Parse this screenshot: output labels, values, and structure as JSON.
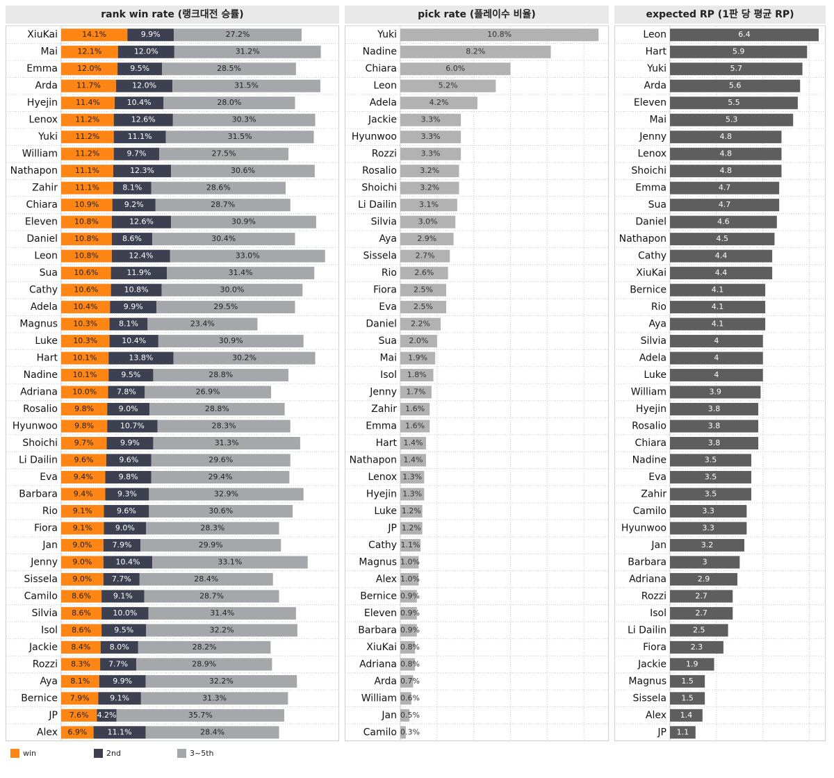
{
  "chart_data": [
    {
      "type": "stacked_bar",
      "title": "rank win rate (랭크대전 승률)",
      "categories": [
        "XiuKai",
        "Mai",
        "Emma",
        "Arda",
        "Hyejin",
        "Lenox",
        "Yuki",
        "William",
        "Nathapon",
        "Zahir",
        "Chiara",
        "Eleven",
        "Daniel",
        "Leon",
        "Sua",
        "Cathy",
        "Adela",
        "Magnus",
        "Luke",
        "Hart",
        "Nadine",
        "Adriana",
        "Rosalio",
        "Hyunwoo",
        "Shoichi",
        "Li Dailin",
        "Eva",
        "Barbara",
        "Rio",
        "Fiora",
        "Jan",
        "Jenny",
        "Sissela",
        "Camilo",
        "Silvia",
        "Isol",
        "Jackie",
        "Rozzi",
        "Aya",
        "Bernice",
        "JP",
        "Alex"
      ],
      "series": [
        {
          "name": "win",
          "color": "#ff8514",
          "values": [
            14.1,
            12.1,
            12.0,
            11.7,
            11.4,
            11.2,
            11.2,
            11.2,
            11.1,
            11.1,
            10.9,
            10.8,
            10.8,
            10.8,
            10.6,
            10.6,
            10.4,
            10.3,
            10.3,
            10.1,
            10.1,
            10.0,
            9.8,
            9.8,
            9.7,
            9.6,
            9.4,
            9.4,
            9.1,
            9.1,
            9.0,
            9.0,
            9.0,
            8.6,
            8.6,
            8.6,
            8.4,
            8.3,
            8.1,
            7.9,
            7.6,
            6.9
          ],
          "value_labels": [
            "14.1%",
            "12.1%",
            "12.0%",
            "11.7%",
            "11.4%",
            "11.2%",
            "11.2%",
            "11.2%",
            "11.1%",
            "11.1%",
            "10.9%",
            "10.8%",
            "10.8%",
            "10.8%",
            "10.6%",
            "10.6%",
            "10.4%",
            "10.3%",
            "10.3%",
            "10.1%",
            "10.1%",
            "10.0%",
            "9.8%",
            "9.8%",
            "9.7%",
            "9.6%",
            "9.4%",
            "9.4%",
            "9.1%",
            "9.1%",
            "9.0%",
            "9.0%",
            "9.0%",
            "8.6%",
            "8.6%",
            "8.6%",
            "8.4%",
            "8.3%",
            "8.1%",
            "7.9%",
            "7.6%",
            "6.9%"
          ]
        },
        {
          "name": "2nd",
          "color": "#3c4050",
          "values": [
            9.9,
            12.0,
            9.5,
            12.0,
            10.4,
            12.6,
            11.1,
            9.7,
            12.3,
            8.1,
            9.2,
            12.6,
            8.6,
            12.4,
            11.9,
            10.8,
            9.9,
            8.1,
            10.4,
            13.8,
            9.5,
            7.8,
            9.0,
            10.7,
            9.9,
            9.6,
            9.8,
            9.3,
            9.6,
            9.0,
            7.9,
            10.4,
            7.7,
            9.1,
            10.0,
            9.5,
            8.0,
            7.7,
            9.9,
            9.1,
            4.2,
            11.1
          ],
          "value_labels": [
            "9.9%",
            "12.0%",
            "9.5%",
            "12.0%",
            "10.4%",
            "12.6%",
            "11.1%",
            "9.7%",
            "12.3%",
            "8.1%",
            "9.2%",
            "12.6%",
            "8.6%",
            "12.4%",
            "11.9%",
            "10.8%",
            "9.9%",
            "8.1%",
            "10.4%",
            "13.8%",
            "9.5%",
            "7.8%",
            "9.0%",
            "10.7%",
            "9.9%",
            "9.6%",
            "9.8%",
            "9.3%",
            "9.6%",
            "9.0%",
            "7.9%",
            "10.4%",
            "7.7%",
            "9.1%",
            "10.0%",
            "9.5%",
            "8.0%",
            "7.7%",
            "9.9%",
            "9.1%",
            "4.2%",
            "11.1%"
          ]
        },
        {
          "name": "3~5th",
          "color": "#a5a7aa",
          "values": [
            27.2,
            31.2,
            28.5,
            31.5,
            28.0,
            30.3,
            31.5,
            27.5,
            30.6,
            28.6,
            28.7,
            30.9,
            30.4,
            33.0,
            31.4,
            30.0,
            29.5,
            23.4,
            30.9,
            30.2,
            28.8,
            26.9,
            28.8,
            28.3,
            31.3,
            29.6,
            29.4,
            32.9,
            30.6,
            28.3,
            29.9,
            33.1,
            28.4,
            28.7,
            31.4,
            32.2,
            28.2,
            28.9,
            32.2,
            31.3,
            35.7,
            28.4
          ],
          "value_labels": [
            "27.2%",
            "31.2%",
            "28.5%",
            "31.5%",
            "28.0%",
            "30.3%",
            "31.5%",
            "27.5%",
            "30.6%",
            "28.6%",
            "28.7%",
            "30.9%",
            "30.4%",
            "33.0%",
            "31.4%",
            "30.0%",
            "29.5%",
            "23.4%",
            "30.9%",
            "30.2%",
            "28.8%",
            "26.9%",
            "28.8%",
            "28.3%",
            "31.3%",
            "29.6%",
            "29.4%",
            "32.9%",
            "30.6%",
            "28.3%",
            "29.9%",
            "33.1%",
            "28.4%",
            "28.7%",
            "31.4%",
            "32.2%",
            "28.2%",
            "28.9%",
            "32.2%",
            "31.3%",
            "35.7%",
            "28.4%"
          ]
        }
      ],
      "xlim": [
        0,
        59.2
      ],
      "legend": "bottom-left"
    },
    {
      "type": "bar",
      "title": "pick rate (플레이수 비율)",
      "categories": [
        "Yuki",
        "Nadine",
        "Chiara",
        "Leon",
        "Adela",
        "Jackie",
        "Hyunwoo",
        "Rozzi",
        "Rosalio",
        "Shoichi",
        "Li Dailin",
        "Silvia",
        "Aya",
        "Sissela",
        "Rio",
        "Fiora",
        "Eva",
        "Daniel",
        "Sua",
        "Mai",
        "Isol",
        "Jenny",
        "Zahir",
        "Emma",
        "Hart",
        "Nathapon",
        "Lenox",
        "Hyejin",
        "Luke",
        "JP",
        "Cathy",
        "Magnus",
        "Alex",
        "Bernice",
        "Eleven",
        "Barbara",
        "XiuKai",
        "Adriana",
        "Arda",
        "William",
        "Jan",
        "Camilo"
      ],
      "values": [
        10.8,
        8.2,
        6.0,
        5.2,
        4.2,
        3.3,
        3.3,
        3.3,
        3.2,
        3.2,
        3.1,
        3.0,
        2.9,
        2.7,
        2.6,
        2.5,
        2.5,
        2.2,
        2.0,
        1.9,
        1.8,
        1.7,
        1.6,
        1.6,
        1.4,
        1.4,
        1.3,
        1.3,
        1.2,
        1.2,
        1.1,
        1.0,
        1.0,
        0.9,
        0.9,
        0.9,
        0.8,
        0.8,
        0.7,
        0.6,
        0.5,
        0.3
      ],
      "value_labels": [
        "10.8%",
        "8.2%",
        "6.0%",
        "5.2%",
        "4.2%",
        "3.3%",
        "3.3%",
        "3.3%",
        "3.2%",
        "3.2%",
        "3.1%",
        "3.0%",
        "2.9%",
        "2.7%",
        "2.6%",
        "2.5%",
        "2.5%",
        "2.2%",
        "2.0%",
        "1.9%",
        "1.8%",
        "1.7%",
        "1.6%",
        "1.6%",
        "1.4%",
        "1.4%",
        "1.3%",
        "1.3%",
        "1.2%",
        "1.2%",
        "1.1%",
        "1.0%",
        "1.0%",
        "0.9%",
        "0.9%",
        "0.9%",
        "0.8%",
        "0.8%",
        "0.7%",
        "0.6%",
        "0.5%",
        "0.3%"
      ],
      "color": "#b2b2b2",
      "xlim": [
        0,
        11.36
      ],
      "xticks": [
        0,
        2,
        4,
        6,
        8,
        10
      ],
      "grid": true
    },
    {
      "type": "bar",
      "title": "expected RP (1판 당 평균 RP)",
      "categories": [
        "Leon",
        "Hart",
        "Yuki",
        "Arda",
        "Eleven",
        "Mai",
        "Jenny",
        "Lenox",
        "Shoichi",
        "Emma",
        "Sua",
        "Daniel",
        "Nathapon",
        "Cathy",
        "XiuKai",
        "Bernice",
        "Rio",
        "Aya",
        "Silvia",
        "Adela",
        "Luke",
        "William",
        "Hyejin",
        "Rosalio",
        "Chiara",
        "Nadine",
        "Eva",
        "Zahir",
        "Camilo",
        "Hyunwoo",
        "Jan",
        "Barbara",
        "Adriana",
        "Rozzi",
        "Isol",
        "Li Dailin",
        "Fiora",
        "Jackie",
        "Magnus",
        "Sissela",
        "Alex",
        "JP"
      ],
      "values": [
        6.4,
        5.9,
        5.7,
        5.6,
        5.5,
        5.3,
        4.8,
        4.8,
        4.8,
        4.7,
        4.7,
        4.6,
        4.5,
        4.4,
        4.4,
        4.1,
        4.1,
        4.1,
        4.0,
        4.0,
        4.0,
        3.9,
        3.8,
        3.8,
        3.8,
        3.5,
        3.5,
        3.5,
        3.3,
        3.3,
        3.2,
        3.0,
        2.9,
        2.7,
        2.7,
        2.5,
        2.3,
        1.9,
        1.5,
        1.5,
        1.4,
        1.1
      ],
      "color": "#5e5e5e",
      "xlim": [
        0,
        6.7
      ],
      "xticks": [
        0,
        2,
        4,
        6
      ],
      "grid": true
    }
  ]
}
